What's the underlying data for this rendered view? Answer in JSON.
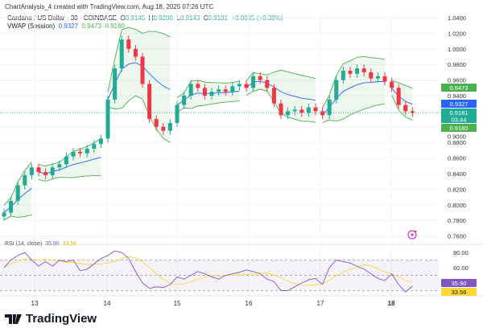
{
  "header": {
    "credit": "ChartAnalysis_4 created with TradingView.com, Aug 18, 2025 07:26 UTC",
    "symbol": "Cardano / US Dollar · 30 · COINBASE",
    "o_label": "O",
    "o": "0.9145",
    "h_label": "H",
    "h": "0.9208",
    "l_label": "L",
    "l": "0.9143",
    "c_label": "C",
    "c": "0.9181",
    "change": "+0.0035 (+0.38%)",
    "vwap_label": "VWAP (Session)",
    "vwap": "0.9327",
    "vwap_upper": "0.9473",
    "vwap_lower": "0.9180"
  },
  "badges": {
    "upper": "0.9473",
    "vwap": "0.9327",
    "price": "0.9181",
    "countdown": "03:44",
    "lower": "0.9180",
    "rsi": "35.90",
    "rsi_ma": "33.56"
  },
  "rsi_legend": {
    "label": "RSI (14, close)",
    "value": "35.90",
    "ma": "33.56"
  },
  "logo": "TradingView",
  "colors": {
    "up": "#22ab94",
    "down": "#f23645",
    "vwap": "#2962ff",
    "band": "#4caf50",
    "rsi": "#7e57c2",
    "rsi_ma": "#fdd835"
  },
  "chart_data": [
    {
      "type": "candlestick",
      "yticks": [
        "1.0400",
        "1.0200",
        "1.0000",
        "0.9800",
        "0.9600",
        "0.9400",
        "0.9000",
        "0.8800",
        "0.8600",
        "0.8400",
        "0.8200",
        "0.8000",
        "0.7800",
        "0.7600"
      ],
      "xticks": [
        "13",
        "14",
        "15",
        "16",
        "17",
        "18"
      ],
      "ylim": [
        0.75,
        1.045
      ],
      "session_starts": [
        5,
        15,
        25,
        35,
        46,
        56
      ],
      "close": [
        0.79,
        0.805,
        0.825,
        0.838,
        0.848,
        0.842,
        0.838,
        0.848,
        0.852,
        0.862,
        0.868,
        0.866,
        0.872,
        0.878,
        0.885,
        0.935,
        0.975,
        1.012,
        1.0,
        0.99,
        0.955,
        0.91,
        0.9,
        0.895,
        0.905,
        0.928,
        0.94,
        0.955,
        0.95,
        0.94,
        0.945,
        0.948,
        0.945,
        0.952,
        0.955,
        0.95,
        0.965,
        0.96,
        0.95,
        0.93,
        0.915,
        0.92,
        0.922,
        0.918,
        0.925,
        0.92,
        0.915,
        0.935,
        0.96,
        0.972,
        0.968,
        0.975,
        0.97,
        0.962,
        0.965,
        0.958,
        0.95,
        0.928,
        0.92,
        0.918
      ]
    },
    {
      "type": "line",
      "title": "RSI (14, close)",
      "yticks": [
        "80.00",
        "60.00"
      ],
      "levels": [
        70,
        50,
        30
      ],
      "ylim": [
        20,
        90
      ],
      "rsi": [
        60,
        70,
        76,
        80,
        70,
        62,
        68,
        62,
        70,
        68,
        70,
        56,
        58,
        65,
        72,
        76,
        82,
        80,
        72,
        55,
        40,
        33,
        35,
        34,
        38,
        48,
        45,
        50,
        55,
        52,
        48,
        45,
        50,
        52,
        54,
        57,
        55,
        52,
        45,
        42,
        30,
        30,
        35,
        40,
        44,
        46,
        38,
        60,
        70,
        68,
        66,
        62,
        58,
        52,
        46,
        43,
        52,
        38,
        28,
        35.9
      ]
    }
  ]
}
